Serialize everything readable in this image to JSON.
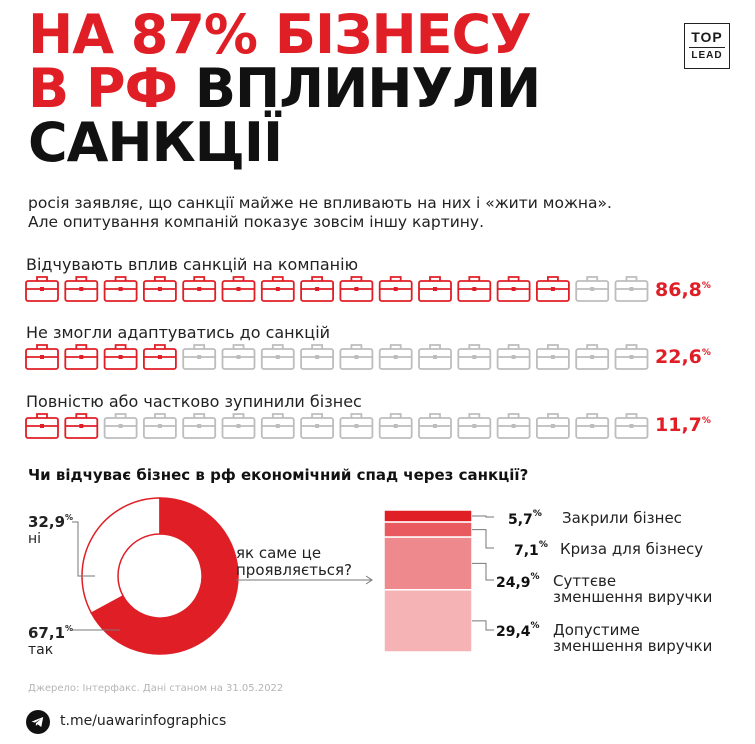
{
  "title": {
    "line1": "НА 87% БІЗНЕСУ",
    "line2_red": "В РФ",
    "line2_black": " ВПЛИНУЛИ",
    "line3": "САНКЦІЇ"
  },
  "logo": {
    "top": "TOP",
    "bottom": "LEAD"
  },
  "intro": {
    "line1": "росія заявляє, що санкції майже не впливають на них і «жити можна».",
    "line2": "Але опитування компаній показує зовсім іншу картину."
  },
  "colors": {
    "accent": "#e01e26",
    "icon_inactive": "#bdbdbd",
    "text": "#1a1a1a"
  },
  "chart_data": [
    {
      "type": "pictograph",
      "icon": "briefcase-icon",
      "icons_per_row": 16,
      "rows": [
        {
          "label": "Відчувають вплив санкцій на компанію",
          "value": 86.8,
          "value_text": "86,8",
          "unit": "%",
          "filled_icons": 14
        },
        {
          "label": "Не змогли адаптуватись до санкцій",
          "value": 22.6,
          "value_text": "22,6",
          "unit": "%",
          "filled_icons": 4
        },
        {
          "label": "Повністю або частково зупинили бізнес",
          "value": 11.7,
          "value_text": "11,7",
          "unit": "%",
          "filled_icons": 2
        }
      ]
    },
    {
      "type": "pie",
      "style": "donut",
      "title": "Чи відчуває бізнес в рф економічний спад через санкції?",
      "slices": [
        {
          "label": "ні",
          "value": 32.9,
          "value_text": "32,9",
          "unit": "%",
          "color": "#ffffff"
        },
        {
          "label": "так",
          "value": 67.1,
          "value_text": "67,1",
          "unit": "%",
          "color": "#e01e26"
        }
      ]
    },
    {
      "type": "bar",
      "style": "stacked-column",
      "title": "як саме це проявляється?",
      "segments": [
        {
          "label": "Закрили бізнес",
          "value": 5.7,
          "value_text": "5,7",
          "unit": "%",
          "color": "#e01e26"
        },
        {
          "label": "Криза для бізнесу",
          "value": 7.1,
          "value_text": "7,1",
          "unit": "%",
          "color": "#e85a5f"
        },
        {
          "label_line1": "Суттєве",
          "label_line2": "зменшення виручки",
          "value": 24.9,
          "value_text": "24,9",
          "unit": "%",
          "color": "#ee8a8d"
        },
        {
          "label_line1": "Допустиме",
          "label_line2": "зменшення виручки",
          "value": 29.4,
          "value_text": "29,4",
          "unit": "%",
          "color": "#f5b3b5"
        }
      ]
    }
  ],
  "footer": {
    "source": "Джерело: Інтерфакс. Дані станом на 31.05.2022",
    "telegram": "t.me/uawarinfographics"
  }
}
